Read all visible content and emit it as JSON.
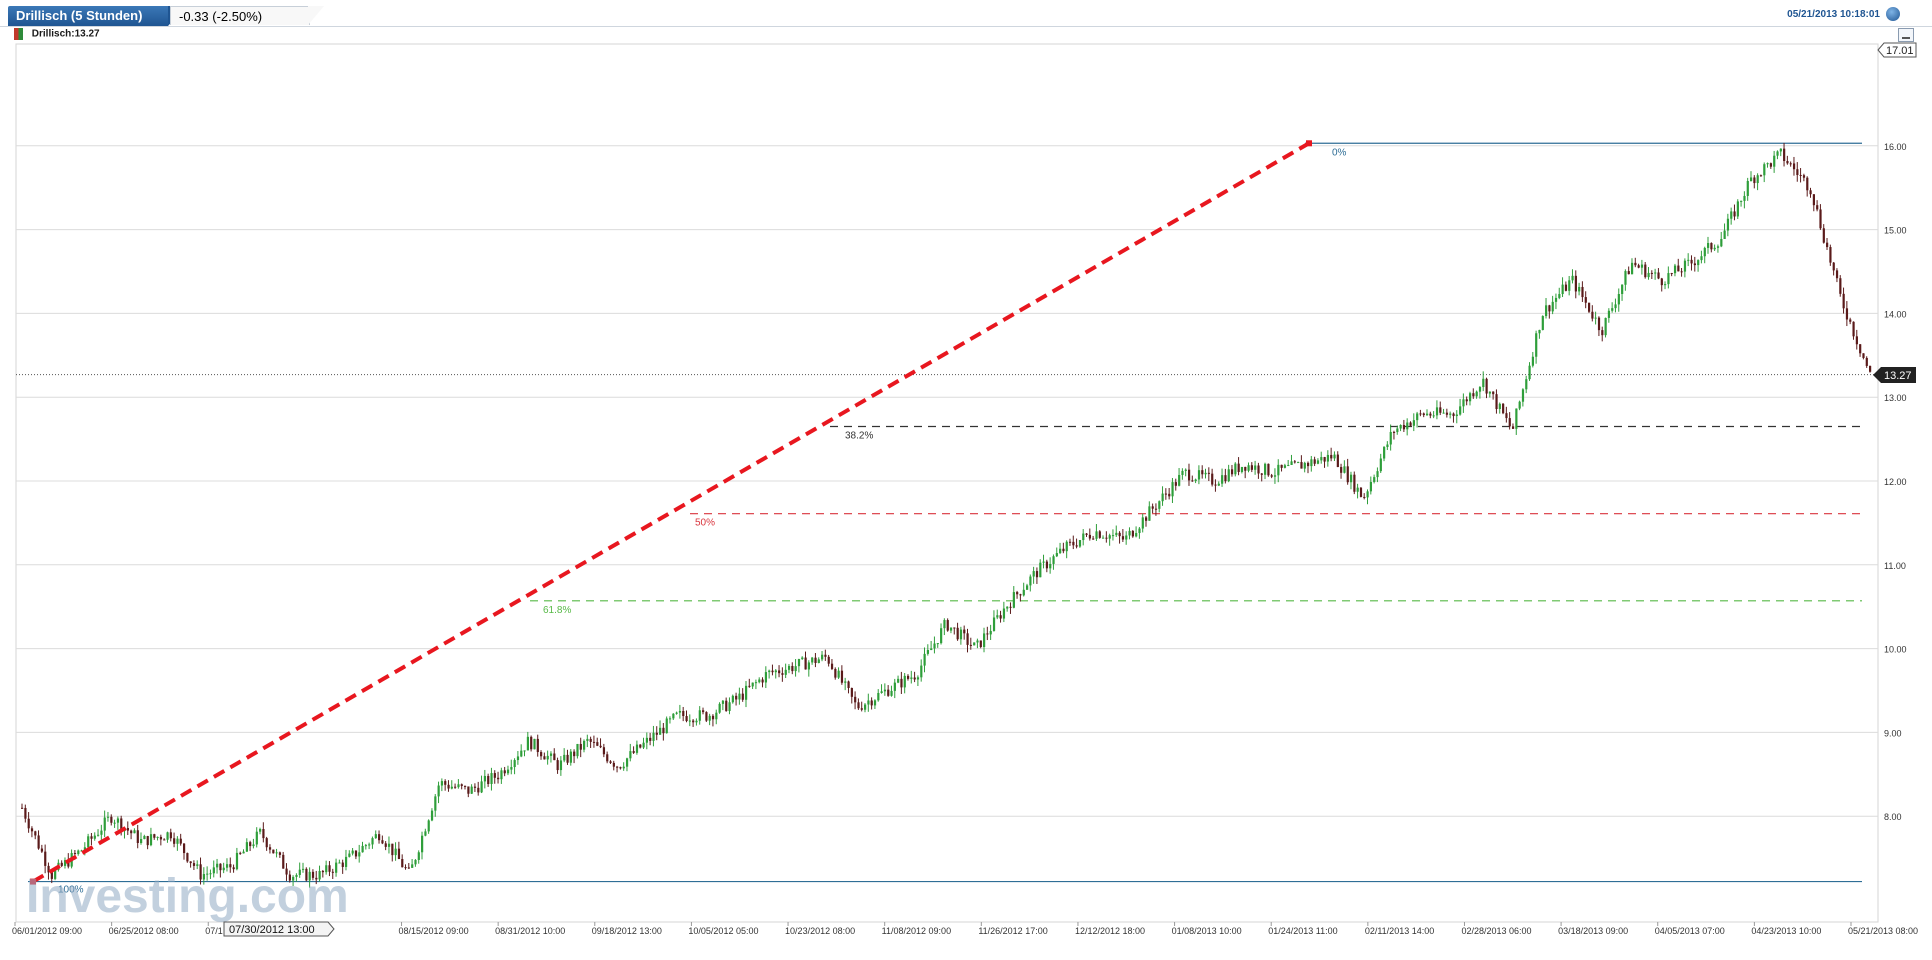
{
  "header": {
    "title_tab": "Drillisch (5 Stunden)",
    "change_tab": "-0.33 (-2.50%)",
    "datetime": "05/21/2013 10:18:01",
    "refresh_icon": "refresh-icon"
  },
  "legend": {
    "label": "Drillisch:13.27",
    "swatch_colors": [
      "#c0392b",
      "#2e8b3a"
    ]
  },
  "watermark": "Investing.com",
  "cursor_label": "07/30/2012 13:00",
  "max_label": "17.01",
  "current_price_label": "13.27",
  "fib_labels": [
    "0%",
    "38.2%",
    "50%",
    "61.8%",
    "100%"
  ],
  "colors": {
    "up": "#2e9e3a",
    "down": "#5a1a1a",
    "trendline": "#e8171f",
    "fib_0": "#2f6e96",
    "fib_382": "#333333",
    "fib_50": "#d9363e",
    "fib_618": "#57b947"
  },
  "chart_data": {
    "type": "candlestick",
    "ylim": [
      7.0,
      17.0
    ],
    "y_ticks": [
      "8.00",
      "9.00",
      "10.00",
      "11.00",
      "12.00",
      "13.00",
      "14.00",
      "15.00",
      "16.00"
    ],
    "x_ticks": [
      "06/01/2012 09:00",
      "06/25/2012 08:00",
      "07/1",
      "2 15:00",
      "08/15/2012 09:00",
      "08/31/2012 10:00",
      "09/18/2012 13:00",
      "10/05/2012 05:00",
      "10/23/2012 08:00",
      "11/08/2012 09:00",
      "11/26/2012 17:00",
      "12/12/2012 18:00",
      "01/08/2013 10:00",
      "01/24/2013 11:00",
      "02/11/2013 14:00",
      "02/28/2013 06:00",
      "03/18/2013 09:00",
      "04/05/2013 07:00",
      "04/23/2013 10:00",
      "05/21/2013 08:00"
    ],
    "last_price": 13.27,
    "max_price": 17.01,
    "fibonacci": {
      "high": 16.03,
      "low": 7.22,
      "levels": [
        {
          "label": "0%",
          "value": 16.03
        },
        {
          "label": "38.2%",
          "value": 12.65
        },
        {
          "label": "50%",
          "value": 11.61
        },
        {
          "label": "61.8%",
          "value": 10.57
        },
        {
          "label": "100%",
          "value": 7.22
        }
      ]
    },
    "trendline": {
      "from": [
        "06/01/2012",
        7.22
      ],
      "to": [
        "01/24/2013",
        16.03
      ]
    },
    "price_path": [
      8.1,
      7.3,
      7.6,
      8.0,
      7.7,
      7.8,
      7.3,
      7.4,
      7.8,
      7.3,
      7.3,
      7.5,
      7.8,
      7.3,
      8.4,
      8.3,
      8.5,
      8.9,
      8.6,
      8.9,
      8.6,
      8.9,
      9.2,
      9.2,
      9.4,
      9.7,
      9.8,
      9.9,
      9.3,
      9.5,
      9.7,
      10.3,
      10.0,
      10.5,
      10.9,
      11.2,
      11.4,
      11.3,
      11.7,
      12.1,
      12.0,
      12.2,
      12.1,
      12.2,
      12.3,
      11.8,
      12.6,
      12.8,
      12.8,
      13.2,
      12.6,
      14.0,
      14.4,
      13.8,
      14.6,
      14.4,
      14.6,
      14.9,
      15.6,
      15.9,
      15.5,
      14.2,
      13.27
    ]
  }
}
